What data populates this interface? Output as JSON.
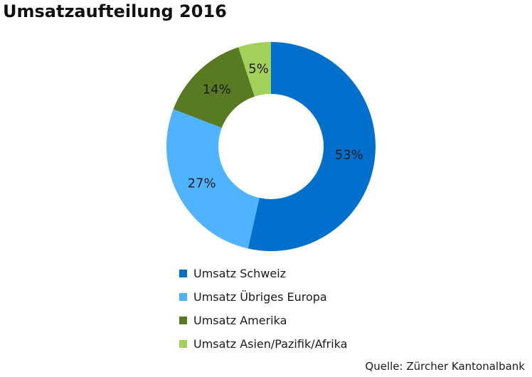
{
  "chart_data": {
    "type": "pie",
    "title": "Umsatzaufteilung 2016",
    "categories": [
      "Umsatz Schweiz",
      "Umsatz Übriges Europa",
      "Umsatz Amerika",
      "Umsatz Asien/Pazifik/Afrika"
    ],
    "values": [
      53,
      27,
      14,
      5
    ],
    "value_labels": [
      "53%",
      "27%",
      "14%",
      "5%"
    ],
    "colors": [
      "#0070cc",
      "#4fb3ff",
      "#577a22",
      "#a3d05a"
    ],
    "legend_position": "bottom",
    "donut": true
  },
  "source": "Quelle: Zürcher Kantonalbank"
}
